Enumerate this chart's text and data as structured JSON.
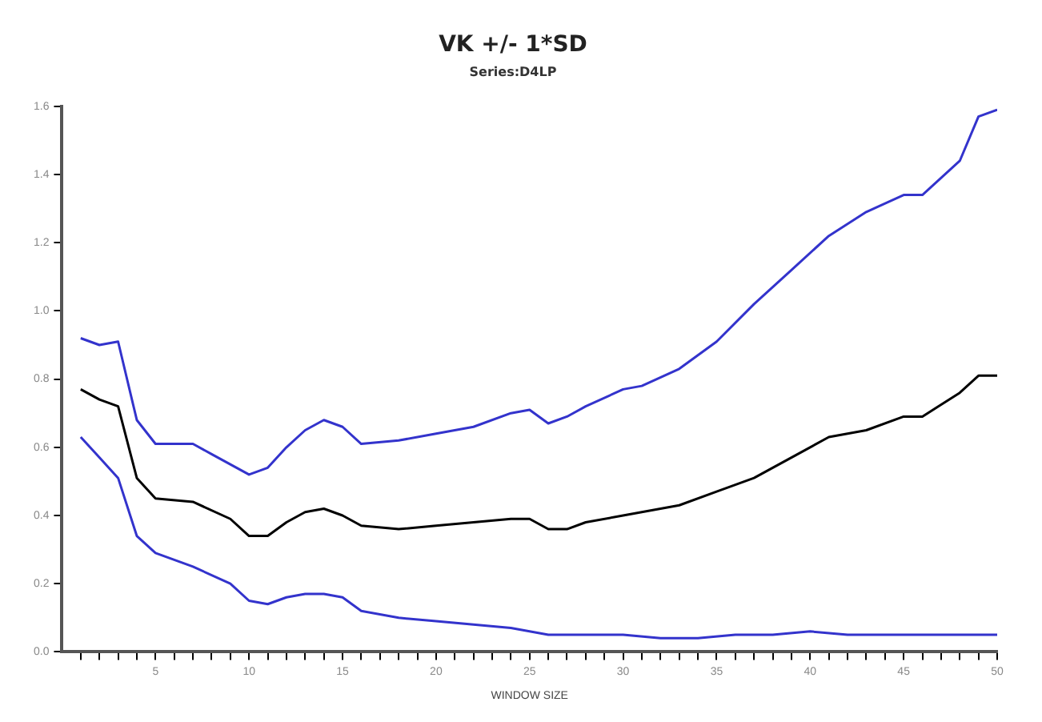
{
  "chart_data": {
    "type": "line",
    "title": "VK +/- 1*SD",
    "subtitle": "Series:D4LP",
    "xlabel": "WINDOW SIZE",
    "grid": false,
    "legend": false,
    "marker": "none",
    "line_style": "solid",
    "xlim": [
      0,
      50
    ],
    "xticks": [
      {
        "value": 1,
        "label": null
      },
      {
        "value": 2,
        "label": null
      },
      {
        "value": 3,
        "label": null
      },
      {
        "value": 4,
        "label": null
      },
      5,
      {
        "value": 6,
        "label": null
      },
      {
        "value": 7,
        "label": null
      },
      {
        "value": 8,
        "label": null
      },
      {
        "value": 9,
        "label": null
      },
      10,
      {
        "value": 11,
        "label": null
      },
      {
        "value": 12,
        "label": null
      },
      {
        "value": 13,
        "label": null
      },
      {
        "value": 14,
        "label": null
      },
      15,
      {
        "value": 16,
        "label": null
      },
      {
        "value": 17,
        "label": null
      },
      {
        "value": 18,
        "label": null
      },
      {
        "value": 19,
        "label": null
      },
      20,
      {
        "value": 21,
        "label": null
      },
      {
        "value": 22,
        "label": null
      },
      {
        "value": 23,
        "label": null
      },
      {
        "value": 24,
        "label": null
      },
      25,
      {
        "value": 26,
        "label": null
      },
      {
        "value": 27,
        "label": null
      },
      {
        "value": 28,
        "label": null
      },
      {
        "value": 29,
        "label": null
      },
      30,
      {
        "value": 31,
        "label": null
      },
      {
        "value": 32,
        "label": null
      },
      {
        "value": 33,
        "label": null
      },
      {
        "value": 34,
        "label": null
      },
      35,
      {
        "value": 36,
        "label": null
      },
      {
        "value": 37,
        "label": null
      },
      {
        "value": 38,
        "label": null
      },
      {
        "value": 39,
        "label": null
      },
      40,
      {
        "value": 41,
        "label": null
      },
      {
        "value": 42,
        "label": null
      },
      {
        "value": 43,
        "label": null
      },
      {
        "value": 44,
        "label": null
      },
      45,
      {
        "value": 46,
        "label": null
      },
      {
        "value": 47,
        "label": null
      },
      {
        "value": 48,
        "label": null
      },
      {
        "value": 49,
        "label": null
      },
      50
    ],
    "ylim": [
      0,
      1.6
    ],
    "yticks": [
      {
        "value": 0,
        "label": "0.0"
      },
      {
        "value": 0.2,
        "label": "0.2"
      },
      {
        "value": 0.4,
        "label": "0.4"
      },
      {
        "value": 0.6,
        "label": "0.6"
      },
      {
        "value": 0.8,
        "label": "0.8"
      },
      {
        "value": 1,
        "label": "1.0"
      },
      {
        "value": 1.2,
        "label": "1.2"
      },
      {
        "value": 1.4,
        "label": "1.4"
      },
      {
        "value": 1.6,
        "label": "1.6"
      }
    ],
    "series": [
      {
        "color": "#3333cc",
        "x": [
          1,
          2,
          3,
          4,
          5,
          6,
          7,
          8,
          10,
          11,
          12,
          13,
          14,
          15,
          16,
          18,
          20,
          22,
          24,
          25,
          26,
          27,
          28,
          30,
          31,
          33,
          35,
          37,
          39,
          41,
          43,
          45,
          46,
          48,
          49,
          50
        ],
        "values": [
          0.92,
          0.9,
          0.91,
          0.68,
          0.61,
          0.61,
          0.61,
          0.58,
          0.52,
          0.54,
          0.6,
          0.65,
          0.68,
          0.66,
          0.61,
          0.62,
          0.64,
          0.66,
          0.7,
          0.71,
          0.67,
          0.69,
          0.72,
          0.77,
          0.78,
          0.83,
          0.91,
          1.02,
          1.12,
          1.22,
          1.29,
          1.34,
          1.34,
          1.44,
          1.57,
          1.59
        ]
      },
      {
        "color": "#000000",
        "x": [
          1,
          2,
          3,
          4,
          5,
          7,
          9,
          10,
          11,
          12,
          13,
          14,
          15,
          16,
          18,
          20,
          22,
          24,
          25,
          26,
          27,
          28,
          30,
          31,
          33,
          35,
          37,
          39,
          41,
          43,
          45,
          46,
          48,
          49,
          50
        ],
        "values": [
          0.77,
          0.74,
          0.72,
          0.51,
          0.45,
          0.44,
          0.39,
          0.34,
          0.34,
          0.38,
          0.41,
          0.42,
          0.4,
          0.37,
          0.36,
          0.37,
          0.38,
          0.39,
          0.39,
          0.36,
          0.36,
          0.38,
          0.4,
          0.41,
          0.43,
          0.47,
          0.51,
          0.57,
          0.63,
          0.65,
          0.69,
          0.69,
          0.76,
          0.81,
          0.81
        ]
      },
      {
        "color": "#3333cc",
        "x": [
          1,
          2,
          3,
          4,
          5,
          7,
          9,
          10,
          11,
          12,
          13,
          14,
          15,
          16,
          18,
          20,
          22,
          24,
          26,
          28,
          30,
          32,
          34,
          36,
          38,
          40,
          42,
          44,
          46,
          48,
          50
        ],
        "values": [
          0.63,
          0.57,
          0.51,
          0.34,
          0.29,
          0.25,
          0.2,
          0.15,
          0.14,
          0.16,
          0.17,
          0.17,
          0.16,
          0.12,
          0.1,
          0.09,
          0.08,
          0.07,
          0.05,
          0.05,
          0.05,
          0.04,
          0.04,
          0.05,
          0.05,
          0.06,
          0.05,
          0.05,
          0.05,
          0.05,
          0.05
        ]
      }
    ]
  }
}
